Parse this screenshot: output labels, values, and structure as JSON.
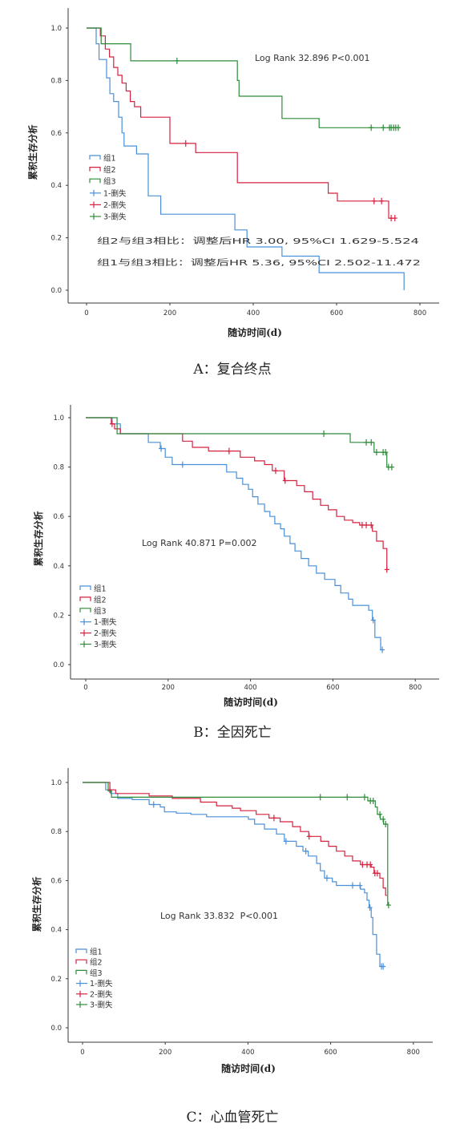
{
  "chart_data": [
    {
      "type": "line",
      "step": "post",
      "caption": "A：复合终点",
      "xlabel": "随访时间(d)",
      "ylabel": "累积生存分析",
      "xlim": [
        0,
        800
      ],
      "ylim": [
        0,
        1
      ],
      "grid": false,
      "xticks": [
        "0",
        "200",
        "400",
        "600",
        "800"
      ],
      "yticks": [
        "0.0",
        "0.2",
        "0.4",
        "0.6",
        "0.8",
        "1.0"
      ],
      "legend_position": "left",
      "legend": [
        "组1",
        "组2",
        "组3",
        "1-删失",
        "2-删失",
        "3-删失"
      ],
      "annotations": [
        "Log Rank 32.896 P<0.001",
        "组2与组3相比：调整后HR 3.00, 95%CI 1.629-5.524",
        "组1与组3相比：调整后HR 5.36, 95%CI 2.502-11.472"
      ],
      "series": [
        {
          "name": "组1",
          "color": "#4a90d9",
          "points": [
            [
              0,
              1.0
            ],
            [
              23,
              0.94
            ],
            [
              30,
              0.88
            ],
            [
              48,
              0.81
            ],
            [
              56,
              0.75
            ],
            [
              65,
              0.72
            ],
            [
              77,
              0.66
            ],
            [
              85,
              0.6
            ],
            [
              90,
              0.55
            ],
            [
              120,
              0.52
            ],
            [
              148,
              0.36
            ],
            [
              178,
              0.29
            ],
            [
              356,
              0.23
            ],
            [
              385,
              0.165
            ],
            [
              469,
              0.13
            ],
            [
              558,
              0.067
            ],
            [
              762,
              0.0
            ]
          ],
          "censored": []
        },
        {
          "name": "组2",
          "color": "#d6213f",
          "points": [
            [
              0,
              1.0
            ],
            [
              33,
              0.97
            ],
            [
              45,
              0.92
            ],
            [
              55,
              0.89
            ],
            [
              65,
              0.85
            ],
            [
              75,
              0.82
            ],
            [
              85,
              0.79
            ],
            [
              95,
              0.76
            ],
            [
              105,
              0.72
            ],
            [
              115,
              0.7
            ],
            [
              130,
              0.66
            ],
            [
              200,
              0.56
            ],
            [
              262,
              0.525
            ],
            [
              362,
              0.41
            ],
            [
              580,
              0.37
            ],
            [
              602,
              0.34
            ],
            [
              725,
              0.275
            ],
            [
              742,
              0.275
            ]
          ],
          "censored": [
            238,
            690,
            708,
            731,
            740
          ]
        },
        {
          "name": "组3",
          "color": "#2e8b3a",
          "points": [
            [
              0,
              1.0
            ],
            [
              35,
              0.94
            ],
            [
              106,
              0.875
            ],
            [
              362,
              0.8
            ],
            [
              366,
              0.74
            ],
            [
              469,
              0.655
            ],
            [
              558,
              0.62
            ],
            [
              752,
              0.62
            ]
          ],
          "censored": [
            217,
            683,
            712,
            727,
            731,
            737,
            742,
            748
          ]
        }
      ]
    },
    {
      "type": "line",
      "step": "post",
      "caption": "B：全因死亡",
      "xlabel": "随访时间(d)",
      "ylabel": "累积生存分析",
      "xlim": [
        0,
        800
      ],
      "ylim": [
        0,
        1
      ],
      "grid": false,
      "xticks": [
        "0",
        "200",
        "400",
        "600",
        "800"
      ],
      "yticks": [
        "0.0",
        "0.2",
        "0.4",
        "0.6",
        "0.8",
        "1.0"
      ],
      "legend_position": "bottom-left",
      "legend": [
        "组1",
        "组2",
        "组3",
        "1-删失",
        "2-删失",
        "3-删失"
      ],
      "annotations": [
        "Log Rank 40.871 P=0.002"
      ],
      "series": [
        {
          "name": "组1",
          "color": "#4a90d9",
          "points": [
            [
              0,
              1.0
            ],
            [
              64,
              0.975
            ],
            [
              84,
              0.935
            ],
            [
              152,
              0.9
            ],
            [
              181,
              0.875
            ],
            [
              193,
              0.84
            ],
            [
              210,
              0.81
            ],
            [
              342,
              0.78
            ],
            [
              366,
              0.755
            ],
            [
              381,
              0.73
            ],
            [
              395,
              0.71
            ],
            [
              405,
              0.68
            ],
            [
              418,
              0.65
            ],
            [
              434,
              0.62
            ],
            [
              447,
              0.6
            ],
            [
              459,
              0.57
            ],
            [
              473,
              0.55
            ],
            [
              482,
              0.52
            ],
            [
              496,
              0.49
            ],
            [
              508,
              0.46
            ],
            [
              523,
              0.43
            ],
            [
              541,
              0.4
            ],
            [
              560,
              0.37
            ],
            [
              580,
              0.345
            ],
            [
              605,
              0.32
            ],
            [
              619,
              0.29
            ],
            [
              638,
              0.265
            ],
            [
              648,
              0.24
            ],
            [
              687,
              0.22
            ],
            [
              696,
              0.18
            ],
            [
              702,
              0.11
            ],
            [
              716,
              0.06
            ],
            [
              722,
              0.06
            ]
          ],
          "censored": [
            183,
            235,
            698,
            720
          ]
        },
        {
          "name": "组2",
          "color": "#d6213f",
          "points": [
            [
              0,
              1.0
            ],
            [
              62,
              0.975
            ],
            [
              70,
              0.955
            ],
            [
              84,
              0.935
            ],
            [
              235,
              0.905
            ],
            [
              259,
              0.88
            ],
            [
              298,
              0.865
            ],
            [
              375,
              0.84
            ],
            [
              410,
              0.825
            ],
            [
              434,
              0.81
            ],
            [
              453,
              0.785
            ],
            [
              482,
              0.745
            ],
            [
              512,
              0.725
            ],
            [
              531,
              0.7
            ],
            [
              551,
              0.67
            ],
            [
              570,
              0.645
            ],
            [
              589,
              0.627
            ],
            [
              609,
              0.6
            ],
            [
              628,
              0.585
            ],
            [
              648,
              0.575
            ],
            [
              665,
              0.565
            ],
            [
              696,
              0.54
            ],
            [
              706,
              0.5
            ],
            [
              722,
              0.47
            ],
            [
              731,
              0.385
            ],
            [
              733,
              0.385
            ]
          ],
          "censored": [
            64,
            348,
            461,
            484,
            671,
            681,
            693,
            731
          ]
        },
        {
          "name": "组3",
          "color": "#2e8b3a",
          "points": [
            [
              0,
              1.0
            ],
            [
              76,
              0.935
            ],
            [
              642,
              0.9
            ],
            [
              700,
              0.86
            ],
            [
              731,
              0.8
            ],
            [
              745,
              0.8
            ]
          ],
          "censored": [
            578,
            681,
            693,
            706,
            722,
            728,
            735,
            743
          ]
        }
      ]
    },
    {
      "type": "line",
      "step": "post",
      "caption": "C：心血管死亡",
      "xlabel": "随访时间(d)",
      "ylabel": "累积生存分析",
      "xlim": [
        0,
        800
      ],
      "ylim": [
        0,
        1
      ],
      "grid": false,
      "xticks": [
        "0",
        "200",
        "400",
        "600",
        "800"
      ],
      "yticks": [
        "0.0",
        "0.2",
        "0.4",
        "0.6",
        "0.8",
        "1.0"
      ],
      "legend_position": "bottom-left",
      "legend": [
        "组1",
        "组2",
        "组3",
        "1-删失",
        "2-删失",
        "3-删失"
      ],
      "annotations": [
        "Log Rank 33.832  P<0.001"
      ],
      "series": [
        {
          "name": "组1",
          "color": "#4a90d9",
          "points": [
            [
              0,
              1.0
            ],
            [
              56,
              0.97
            ],
            [
              68,
              0.955
            ],
            [
              85,
              0.935
            ],
            [
              120,
              0.93
            ],
            [
              161,
              0.91
            ],
            [
              188,
              0.9
            ],
            [
              198,
              0.88
            ],
            [
              227,
              0.875
            ],
            [
              262,
              0.87
            ],
            [
              300,
              0.86
            ],
            [
              401,
              0.85
            ],
            [
              416,
              0.83
            ],
            [
              440,
              0.81
            ],
            [
              469,
              0.79
            ],
            [
              488,
              0.76
            ],
            [
              517,
              0.74
            ],
            [
              533,
              0.72
            ],
            [
              546,
              0.7
            ],
            [
              566,
              0.67
            ],
            [
              575,
              0.64
            ],
            [
              585,
              0.61
            ],
            [
              604,
              0.595
            ],
            [
              614,
              0.58
            ],
            [
              672,
              0.565
            ],
            [
              682,
              0.55
            ],
            [
              688,
              0.52
            ],
            [
              693,
              0.49
            ],
            [
              698,
              0.45
            ],
            [
              702,
              0.38
            ],
            [
              711,
              0.3
            ],
            [
              719,
              0.25
            ],
            [
              730,
              0.25
            ]
          ],
          "censored": [
            172,
            492,
            540,
            591,
            653,
            671,
            695,
            723,
            727
          ]
        },
        {
          "name": "组2",
          "color": "#d6213f",
          "points": [
            [
              0,
              1.0
            ],
            [
              66,
              0.97
            ],
            [
              80,
              0.955
            ],
            [
              161,
              0.945
            ],
            [
              217,
              0.935
            ],
            [
              285,
              0.92
            ],
            [
              324,
              0.905
            ],
            [
              362,
              0.895
            ],
            [
              382,
              0.885
            ],
            [
              420,
              0.87
            ],
            [
              451,
              0.855
            ],
            [
              478,
              0.84
            ],
            [
              508,
              0.82
            ],
            [
              527,
              0.8
            ],
            [
              547,
              0.78
            ],
            [
              576,
              0.76
            ],
            [
              595,
              0.74
            ],
            [
              614,
              0.72
            ],
            [
              634,
              0.7
            ],
            [
              653,
              0.68
            ],
            [
              672,
              0.665
            ],
            [
              698,
              0.655
            ],
            [
              705,
              0.63
            ],
            [
              719,
              0.61
            ],
            [
              727,
              0.57
            ],
            [
              733,
              0.54
            ],
            [
              736,
              0.54
            ]
          ],
          "censored": [
            66,
            463,
            548,
            677,
            688,
            696,
            707,
            713
          ]
        },
        {
          "name": "组3",
          "color": "#2e8b3a",
          "points": [
            [
              0,
              1.0
            ],
            [
              62,
              0.965
            ],
            [
              70,
              0.94
            ],
            [
              690,
              0.925
            ],
            [
              708,
              0.9
            ],
            [
              713,
              0.87
            ],
            [
              720,
              0.85
            ],
            [
              728,
              0.83
            ],
            [
              738,
              0.5
            ],
            [
              740,
              0.5
            ]
          ],
          "censored": [
            575,
            640,
            682,
            696,
            703,
            719,
            727,
            733,
            740
          ]
        }
      ]
    }
  ]
}
